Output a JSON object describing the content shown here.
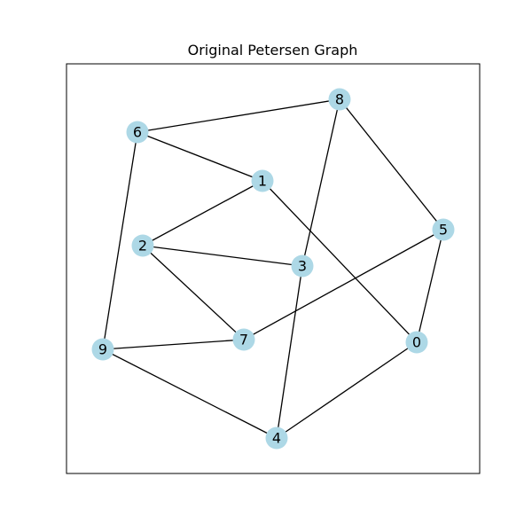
{
  "title": "Original Petersen Graph",
  "colors": {
    "node_fill": "#add8e6",
    "edge": "#000000",
    "frame": "#000000",
    "background": "#ffffff"
  },
  "graph": {
    "nodes": [
      "0",
      "1",
      "2",
      "3",
      "4",
      "5",
      "6",
      "7",
      "8",
      "9"
    ],
    "edges": [
      [
        "6",
        "8"
      ],
      [
        "6",
        "1"
      ],
      [
        "6",
        "9"
      ],
      [
        "8",
        "5"
      ],
      [
        "8",
        "3"
      ],
      [
        "1",
        "2"
      ],
      [
        "1",
        "0"
      ],
      [
        "2",
        "3"
      ],
      [
        "2",
        "7"
      ],
      [
        "5",
        "7"
      ],
      [
        "5",
        "0"
      ],
      [
        "9",
        "7"
      ],
      [
        "9",
        "4"
      ],
      [
        "3",
        "4"
      ],
      [
        "4",
        "0"
      ]
    ]
  }
}
